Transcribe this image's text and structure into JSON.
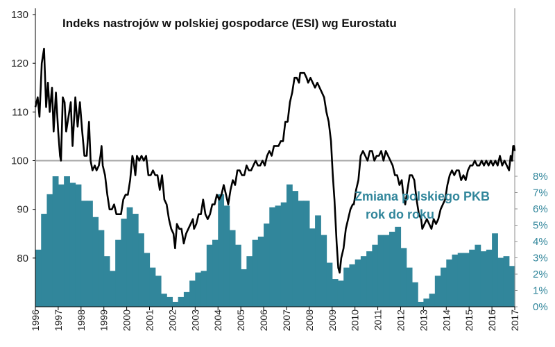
{
  "colors": {
    "bar": "#31869b",
    "line": "#000000",
    "reference": "#a6a6a6",
    "right_axis": "#31869b"
  },
  "chart_data": {
    "type": "bar+line",
    "title": "Indeks nastrojów w polskiej gospodarce (ESI) wg Eurostatu",
    "annotation_lines": [
      "Zmiana polskiego PKB",
      "rok do roku"
    ],
    "x_range": [
      1996.0,
      2017.0
    ],
    "x_tick_labels": [
      "1996",
      "1997",
      "1998",
      "1999",
      "2000",
      "2001",
      "2002",
      "2003",
      "2004",
      "2005",
      "2006",
      "2007",
      "2008",
      "2009",
      "2010",
      "2011",
      "2012",
      "2013",
      "2014",
      "2015",
      "2016",
      "2017"
    ],
    "esi": {
      "name": "ESI",
      "axis": "left",
      "ylim": [
        70,
        130
      ],
      "tick_labels": [
        "80",
        "90",
        "100",
        "110",
        "120",
        "130"
      ],
      "reference_value": 100,
      "points": [
        [
          1996.0,
          111
        ],
        [
          1996.1,
          113
        ],
        [
          1996.18,
          109
        ],
        [
          1996.28,
          120
        ],
        [
          1996.38,
          123
        ],
        [
          1996.47,
          111
        ],
        [
          1996.55,
          116
        ],
        [
          1996.63,
          110
        ],
        [
          1996.73,
          115
        ],
        [
          1996.8,
          106
        ],
        [
          1996.9,
          114
        ],
        [
          1997.0,
          106
        ],
        [
          1997.08,
          101
        ],
        [
          1997.12,
          100
        ],
        [
          1997.2,
          113
        ],
        [
          1997.28,
          112
        ],
        [
          1997.35,
          106
        ],
        [
          1997.45,
          109
        ],
        [
          1997.55,
          112
        ],
        [
          1997.63,
          103
        ],
        [
          1997.75,
          113
        ],
        [
          1997.85,
          107
        ],
        [
          1997.95,
          112
        ],
        [
          1998.05,
          106
        ],
        [
          1998.15,
          101
        ],
        [
          1998.25,
          101
        ],
        [
          1998.35,
          108
        ],
        [
          1998.42,
          100
        ],
        [
          1998.5,
          98
        ],
        [
          1998.6,
          99
        ],
        [
          1998.68,
          98
        ],
        [
          1998.78,
          99
        ],
        [
          1998.85,
          101
        ],
        [
          1998.9,
          103
        ],
        [
          1998.95,
          99
        ],
        [
          1999.05,
          97
        ],
        [
          1999.15,
          93
        ],
        [
          1999.25,
          90
        ],
        [
          1999.35,
          90
        ],
        [
          1999.45,
          91
        ],
        [
          1999.55,
          89
        ],
        [
          1999.65,
          89
        ],
        [
          1999.75,
          89
        ],
        [
          1999.85,
          92
        ],
        [
          1999.95,
          93
        ],
        [
          2000.05,
          93
        ],
        [
          2000.15,
          96
        ],
        [
          2000.25,
          101
        ],
        [
          2000.3,
          100
        ],
        [
          2000.38,
          97
        ],
        [
          2000.45,
          101
        ],
        [
          2000.55,
          100
        ],
        [
          2000.65,
          101
        ],
        [
          2000.75,
          100
        ],
        [
          2000.85,
          101
        ],
        [
          2000.95,
          97
        ],
        [
          2001.05,
          97
        ],
        [
          2001.15,
          98
        ],
        [
          2001.25,
          97
        ],
        [
          2001.35,
          97
        ],
        [
          2001.45,
          94
        ],
        [
          2001.55,
          97
        ],
        [
          2001.65,
          92
        ],
        [
          2001.75,
          91
        ],
        [
          2001.85,
          88
        ],
        [
          2001.95,
          86
        ],
        [
          2002.05,
          85
        ],
        [
          2002.12,
          82
        ],
        [
          2002.2,
          87
        ],
        [
          2002.3,
          86
        ],
        [
          2002.4,
          86
        ],
        [
          2002.5,
          83
        ],
        [
          2002.6,
          85
        ],
        [
          2002.7,
          86
        ],
        [
          2002.8,
          87
        ],
        [
          2002.9,
          88
        ],
        [
          2002.95,
          86
        ],
        [
          2003.05,
          87
        ],
        [
          2003.15,
          89
        ],
        [
          2003.25,
          89
        ],
        [
          2003.35,
          92
        ],
        [
          2003.45,
          89
        ],
        [
          2003.55,
          88
        ],
        [
          2003.65,
          89
        ],
        [
          2003.75,
          91
        ],
        [
          2003.85,
          91
        ],
        [
          2003.95,
          93
        ],
        [
          2004.05,
          92
        ],
        [
          2004.15,
          93
        ],
        [
          2004.25,
          95
        ],
        [
          2004.35,
          93
        ],
        [
          2004.45,
          91
        ],
        [
          2004.55,
          94
        ],
        [
          2004.65,
          96
        ],
        [
          2004.75,
          95
        ],
        [
          2004.85,
          98
        ],
        [
          2004.95,
          98
        ],
        [
          2005.05,
          97
        ],
        [
          2005.15,
          97
        ],
        [
          2005.25,
          99
        ],
        [
          2005.35,
          98
        ],
        [
          2005.45,
          98
        ],
        [
          2005.55,
          99
        ],
        [
          2005.65,
          100
        ],
        [
          2005.75,
          99
        ],
        [
          2005.85,
          99
        ],
        [
          2005.95,
          100
        ],
        [
          2006.05,
          99
        ],
        [
          2006.15,
          101
        ],
        [
          2006.25,
          102
        ],
        [
          2006.35,
          101
        ],
        [
          2006.45,
          103
        ],
        [
          2006.55,
          103
        ],
        [
          2006.65,
          103
        ],
        [
          2006.75,
          104
        ],
        [
          2006.85,
          104
        ],
        [
          2006.95,
          108
        ],
        [
          2007.05,
          108
        ],
        [
          2007.15,
          112
        ],
        [
          2007.25,
          114
        ],
        [
          2007.35,
          117
        ],
        [
          2007.45,
          117
        ],
        [
          2007.55,
          116
        ],
        [
          2007.6,
          118
        ],
        [
          2007.7,
          118
        ],
        [
          2007.78,
          118
        ],
        [
          2007.88,
          117
        ],
        [
          2007.95,
          116
        ],
        [
          2008.05,
          117
        ],
        [
          2008.15,
          116
        ],
        [
          2008.25,
          115
        ],
        [
          2008.35,
          116
        ],
        [
          2008.45,
          115
        ],
        [
          2008.55,
          114
        ],
        [
          2008.65,
          113
        ],
        [
          2008.75,
          110
        ],
        [
          2008.85,
          108
        ],
        [
          2008.95,
          104
        ],
        [
          2009.03,
          97
        ],
        [
          2009.1,
          92
        ],
        [
          2009.2,
          83
        ],
        [
          2009.27,
          78
        ],
        [
          2009.33,
          77
        ],
        [
          2009.4,
          80
        ],
        [
          2009.5,
          82
        ],
        [
          2009.6,
          86
        ],
        [
          2009.7,
          88
        ],
        [
          2009.8,
          90
        ],
        [
          2009.9,
          91
        ],
        [
          2009.95,
          91
        ],
        [
          2010.05,
          94
        ],
        [
          2010.15,
          96
        ],
        [
          2010.25,
          101
        ],
        [
          2010.35,
          102
        ],
        [
          2010.45,
          101
        ],
        [
          2010.55,
          100
        ],
        [
          2010.65,
          102
        ],
        [
          2010.75,
          102
        ],
        [
          2010.85,
          100
        ],
        [
          2010.95,
          101
        ],
        [
          2011.05,
          101
        ],
        [
          2011.15,
          102
        ],
        [
          2011.25,
          100
        ],
        [
          2011.35,
          102
        ],
        [
          2011.45,
          101
        ],
        [
          2011.55,
          100
        ],
        [
          2011.65,
          99
        ],
        [
          2011.75,
          97
        ],
        [
          2011.85,
          97
        ],
        [
          2011.95,
          95
        ],
        [
          2012.05,
          96
        ],
        [
          2012.12,
          93
        ],
        [
          2012.2,
          91
        ],
        [
          2012.3,
          94
        ],
        [
          2012.4,
          97
        ],
        [
          2012.5,
          97
        ],
        [
          2012.6,
          96
        ],
        [
          2012.7,
          92
        ],
        [
          2012.8,
          89
        ],
        [
          2012.9,
          88
        ],
        [
          2012.95,
          86
        ],
        [
          2013.05,
          87
        ],
        [
          2013.15,
          88
        ],
        [
          2013.25,
          87
        ],
        [
          2013.35,
          86
        ],
        [
          2013.45,
          88
        ],
        [
          2013.55,
          87
        ],
        [
          2013.65,
          88
        ],
        [
          2013.75,
          90
        ],
        [
          2013.85,
          91
        ],
        [
          2013.95,
          92
        ],
        [
          2014.05,
          95
        ],
        [
          2014.15,
          97
        ],
        [
          2014.25,
          98
        ],
        [
          2014.35,
          97
        ],
        [
          2014.45,
          98
        ],
        [
          2014.55,
          98
        ],
        [
          2014.65,
          96
        ],
        [
          2014.75,
          97
        ],
        [
          2014.85,
          96
        ],
        [
          2014.95,
          98
        ],
        [
          2015.05,
          99
        ],
        [
          2015.15,
          99
        ],
        [
          2015.25,
          100
        ],
        [
          2015.35,
          99
        ],
        [
          2015.45,
          99
        ],
        [
          2015.55,
          100
        ],
        [
          2015.65,
          99
        ],
        [
          2015.75,
          100
        ],
        [
          2015.85,
          99
        ],
        [
          2015.95,
          100
        ],
        [
          2016.05,
          99
        ],
        [
          2016.15,
          100
        ],
        [
          2016.25,
          99
        ],
        [
          2016.35,
          101
        ],
        [
          2016.45,
          99
        ],
        [
          2016.55,
          100
        ],
        [
          2016.65,
          99
        ],
        [
          2016.75,
          98
        ],
        [
          2016.82,
          101
        ],
        [
          2016.88,
          100
        ],
        [
          2016.93,
          103
        ],
        [
          2016.97,
          103
        ],
        [
          2017.0,
          102
        ]
      ]
    },
    "gdp": {
      "name": "Zmiana polskiego PKB rok do roku",
      "axis": "right",
      "unit": "%",
      "ylim": [
        0,
        8
      ],
      "tick_labels": [
        "0%",
        "1%",
        "2%",
        "3%",
        "4%",
        "5%",
        "6%",
        "7%",
        "8%"
      ],
      "quarter_start": 1996.0,
      "quarter_values": [
        3.5,
        5.7,
        6.9,
        8.0,
        7.5,
        8.0,
        7.6,
        7.5,
        6.5,
        6.5,
        5.5,
        4.7,
        3.1,
        2.2,
        4.1,
        5.4,
        6.1,
        5.7,
        4.5,
        3.3,
        2.4,
        1.9,
        0.8,
        0.6,
        0.3,
        0.6,
        0.9,
        1.6,
        2.1,
        2.2,
        3.8,
        4.1,
        6.9,
        6.2,
        4.7,
        3.8,
        2.3,
        3.1,
        4.1,
        4.3,
        5.1,
        6.1,
        6.2,
        6.4,
        7.5,
        7.1,
        6.5,
        6.5,
        4.8,
        5.6,
        4.4,
        2.7,
        1.7,
        1.6,
        2.4,
        2.6,
        2.9,
        3.1,
        3.4,
        3.8,
        4.4,
        4.4,
        4.6,
        4.9,
        3.6,
        2.4,
        1.5,
        0.3,
        0.5,
        0.8,
        1.9,
        2.4,
        2.9,
        3.2,
        3.3,
        3.3,
        3.5,
        3.8,
        3.4,
        3.5,
        4.5,
        3.0,
        3.1,
        2.5,
        2.7
      ]
    }
  }
}
